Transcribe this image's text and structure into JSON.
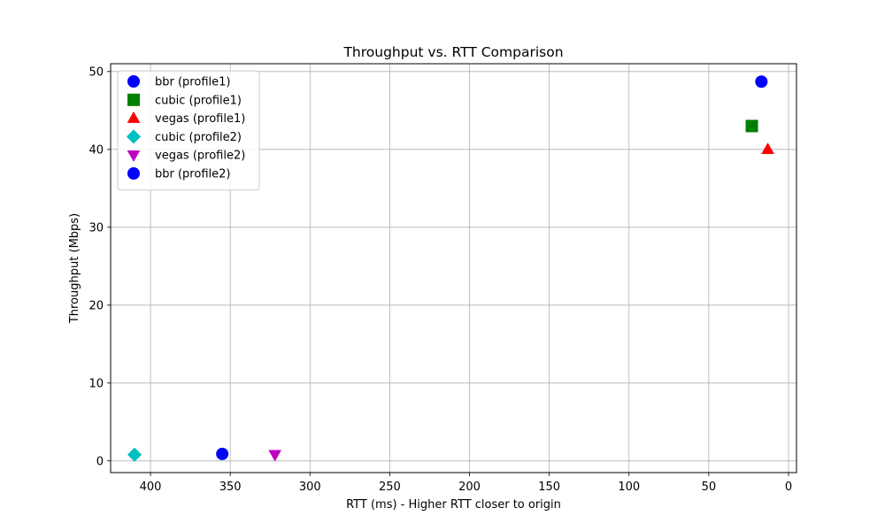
{
  "chart_data": {
    "type": "scatter",
    "title": "Throughput vs. RTT Comparison",
    "xlabel": "RTT (ms) - Higher RTT closer to origin",
    "ylabel": "Throughput (Mbps)",
    "xlim": [
      425,
      -5
    ],
    "ylim": [
      -1.5,
      51
    ],
    "x_inverted": true,
    "grid": true,
    "legend_position": "upper-left",
    "xticks": [
      400,
      350,
      300,
      250,
      200,
      150,
      100,
      50,
      0
    ],
    "yticks": [
      0,
      10,
      20,
      30,
      40,
      50
    ],
    "series": [
      {
        "name": "bbr (profile1)",
        "marker": "circle",
        "color": "#0000ff",
        "points": [
          {
            "x": 17,
            "y": 48.7
          }
        ]
      },
      {
        "name": "cubic (profile1)",
        "marker": "square",
        "color": "#008000",
        "points": [
          {
            "x": 23,
            "y": 43.0
          }
        ]
      },
      {
        "name": "vegas (profile1)",
        "marker": "triangle-up",
        "color": "#ff0000",
        "points": [
          {
            "x": 13,
            "y": 40.0
          }
        ]
      },
      {
        "name": "cubic (profile2)",
        "marker": "diamond",
        "color": "#00bfbf",
        "points": [
          {
            "x": 410,
            "y": 0.8
          }
        ]
      },
      {
        "name": "vegas (profile2)",
        "marker": "triangle-down",
        "color": "#bf00bf",
        "points": [
          {
            "x": 322,
            "y": 0.8
          }
        ]
      },
      {
        "name": "bbr (profile2)",
        "marker": "circle",
        "color": "#0000ff",
        "points": [
          {
            "x": 355,
            "y": 0.9
          }
        ]
      }
    ]
  }
}
